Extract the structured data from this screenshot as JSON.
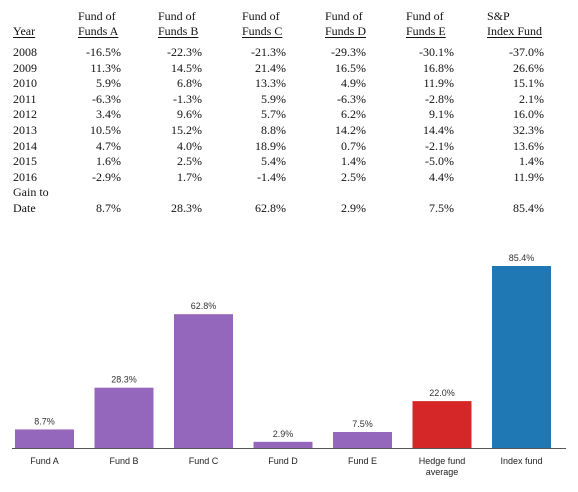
{
  "table": {
    "header": {
      "year": "Year",
      "columns": [
        [
          "Fund of",
          "Funds A"
        ],
        [
          "Fund of",
          "Funds B"
        ],
        [
          "Fund of",
          "Funds C"
        ],
        [
          "Fund of",
          "Funds D"
        ],
        [
          "Fund of",
          "Funds E"
        ],
        [
          "S&P",
          "Index Fund"
        ]
      ]
    },
    "rows": [
      {
        "year": "2008",
        "values": [
          "-16.5%",
          "-22.3%",
          "-21.3%",
          "-29.3%",
          "-30.1%",
          "-37.0%"
        ]
      },
      {
        "year": "2009",
        "values": [
          "11.3%",
          "14.5%",
          "21.4%",
          "16.5%",
          "16.8%",
          "26.6%"
        ]
      },
      {
        "year": "2010",
        "values": [
          "5.9%",
          "6.8%",
          "13.3%",
          "4.9%",
          "11.9%",
          "15.1%"
        ]
      },
      {
        "year": "2011",
        "values": [
          "-6.3%",
          "-1.3%",
          "5.9%",
          "-6.3%",
          "-2.8%",
          "2.1%"
        ]
      },
      {
        "year": "2012",
        "values": [
          "3.4%",
          "9.6%",
          "5.7%",
          "6.2%",
          "9.1%",
          "16.0%"
        ]
      },
      {
        "year": "2013",
        "values": [
          "10.5%",
          "15.2%",
          "8.8%",
          "14.2%",
          "14.4%",
          "32.3%"
        ]
      },
      {
        "year": "2014",
        "values": [
          "4.7%",
          "4.0%",
          "18.9%",
          "0.7%",
          "-2.1%",
          "13.6%"
        ]
      },
      {
        "year": "2015",
        "values": [
          "1.6%",
          "2.5%",
          "5.4%",
          "1.4%",
          "-5.0%",
          "1.4%"
        ]
      },
      {
        "year": "2016",
        "values": [
          "-2.9%",
          "1.7%",
          "-1.4%",
          "2.5%",
          "4.4%",
          "11.9%"
        ]
      }
    ],
    "gain": {
      "label_line1": "Gain to",
      "label_line2": "Date",
      "values": [
        "8.7%",
        "28.3%",
        "62.8%",
        "2.9%",
        "7.5%",
        "85.4%"
      ]
    }
  },
  "colors": {
    "fund": "#9467bd",
    "average": "#d62728",
    "index": "#1f77b4"
  },
  "chart_data": {
    "type": "bar",
    "categories": [
      "Fund A",
      "Fund B",
      "Fund C",
      "Fund D",
      "Fund E",
      "Hedge fund average",
      "Index fund"
    ],
    "category_lines": [
      [
        "Fund A"
      ],
      [
        "Fund B"
      ],
      [
        "Fund C"
      ],
      [
        "Fund D"
      ],
      [
        "Fund E"
      ],
      [
        "Hedge fund",
        "average"
      ],
      [
        "Index fund"
      ]
    ],
    "values": [
      8.7,
      28.3,
      62.8,
      2.9,
      7.5,
      22.0,
      85.4
    ],
    "value_labels": [
      "8.7%",
      "28.3%",
      "62.8%",
      "2.9%",
      "7.5%",
      "22.0%",
      "85.4%"
    ],
    "bar_colors": [
      "fund",
      "fund",
      "fund",
      "fund",
      "fund",
      "average",
      "index"
    ],
    "title": "",
    "xlabel": "",
    "ylabel": "",
    "ylim": [
      0,
      85.4
    ],
    "grid": false,
    "legend": "none"
  }
}
